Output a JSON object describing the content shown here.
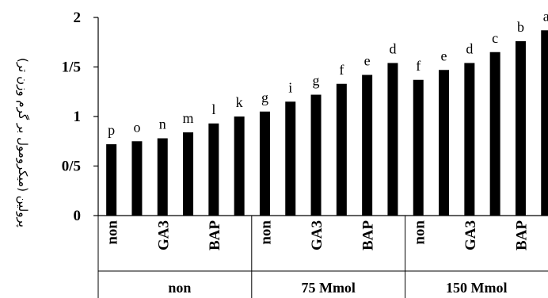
{
  "chart_data": {
    "type": "bar",
    "ylabel": "پرولین (میکرومول بر گرم وزن تر)",
    "ylim": [
      0,
      2
    ],
    "yticks": [
      "0",
      "0/5",
      "1",
      "1/5",
      "2"
    ],
    "categories": [
      "non",
      "",
      "GA3",
      "",
      "BAP",
      "",
      "non",
      "",
      "GA3",
      "",
      "BAP",
      "",
      "non",
      "",
      "GA3",
      "",
      "BAP",
      ""
    ],
    "groups": [
      "non",
      "75 Mmol",
      "150 Mmol"
    ],
    "values": [
      0.72,
      0.75,
      0.78,
      0.84,
      0.93,
      1.0,
      1.05,
      1.15,
      1.22,
      1.33,
      1.42,
      1.54,
      1.37,
      1.47,
      1.54,
      1.65,
      1.76,
      1.87
    ],
    "letters": [
      "p",
      "o",
      "n",
      "m",
      "l",
      "k",
      "g",
      "i",
      "g",
      "f",
      "e",
      "d",
      "f",
      "e",
      "d",
      "c",
      "b",
      "a"
    ],
    "bar_color": "#000000",
    "grid": false
  }
}
